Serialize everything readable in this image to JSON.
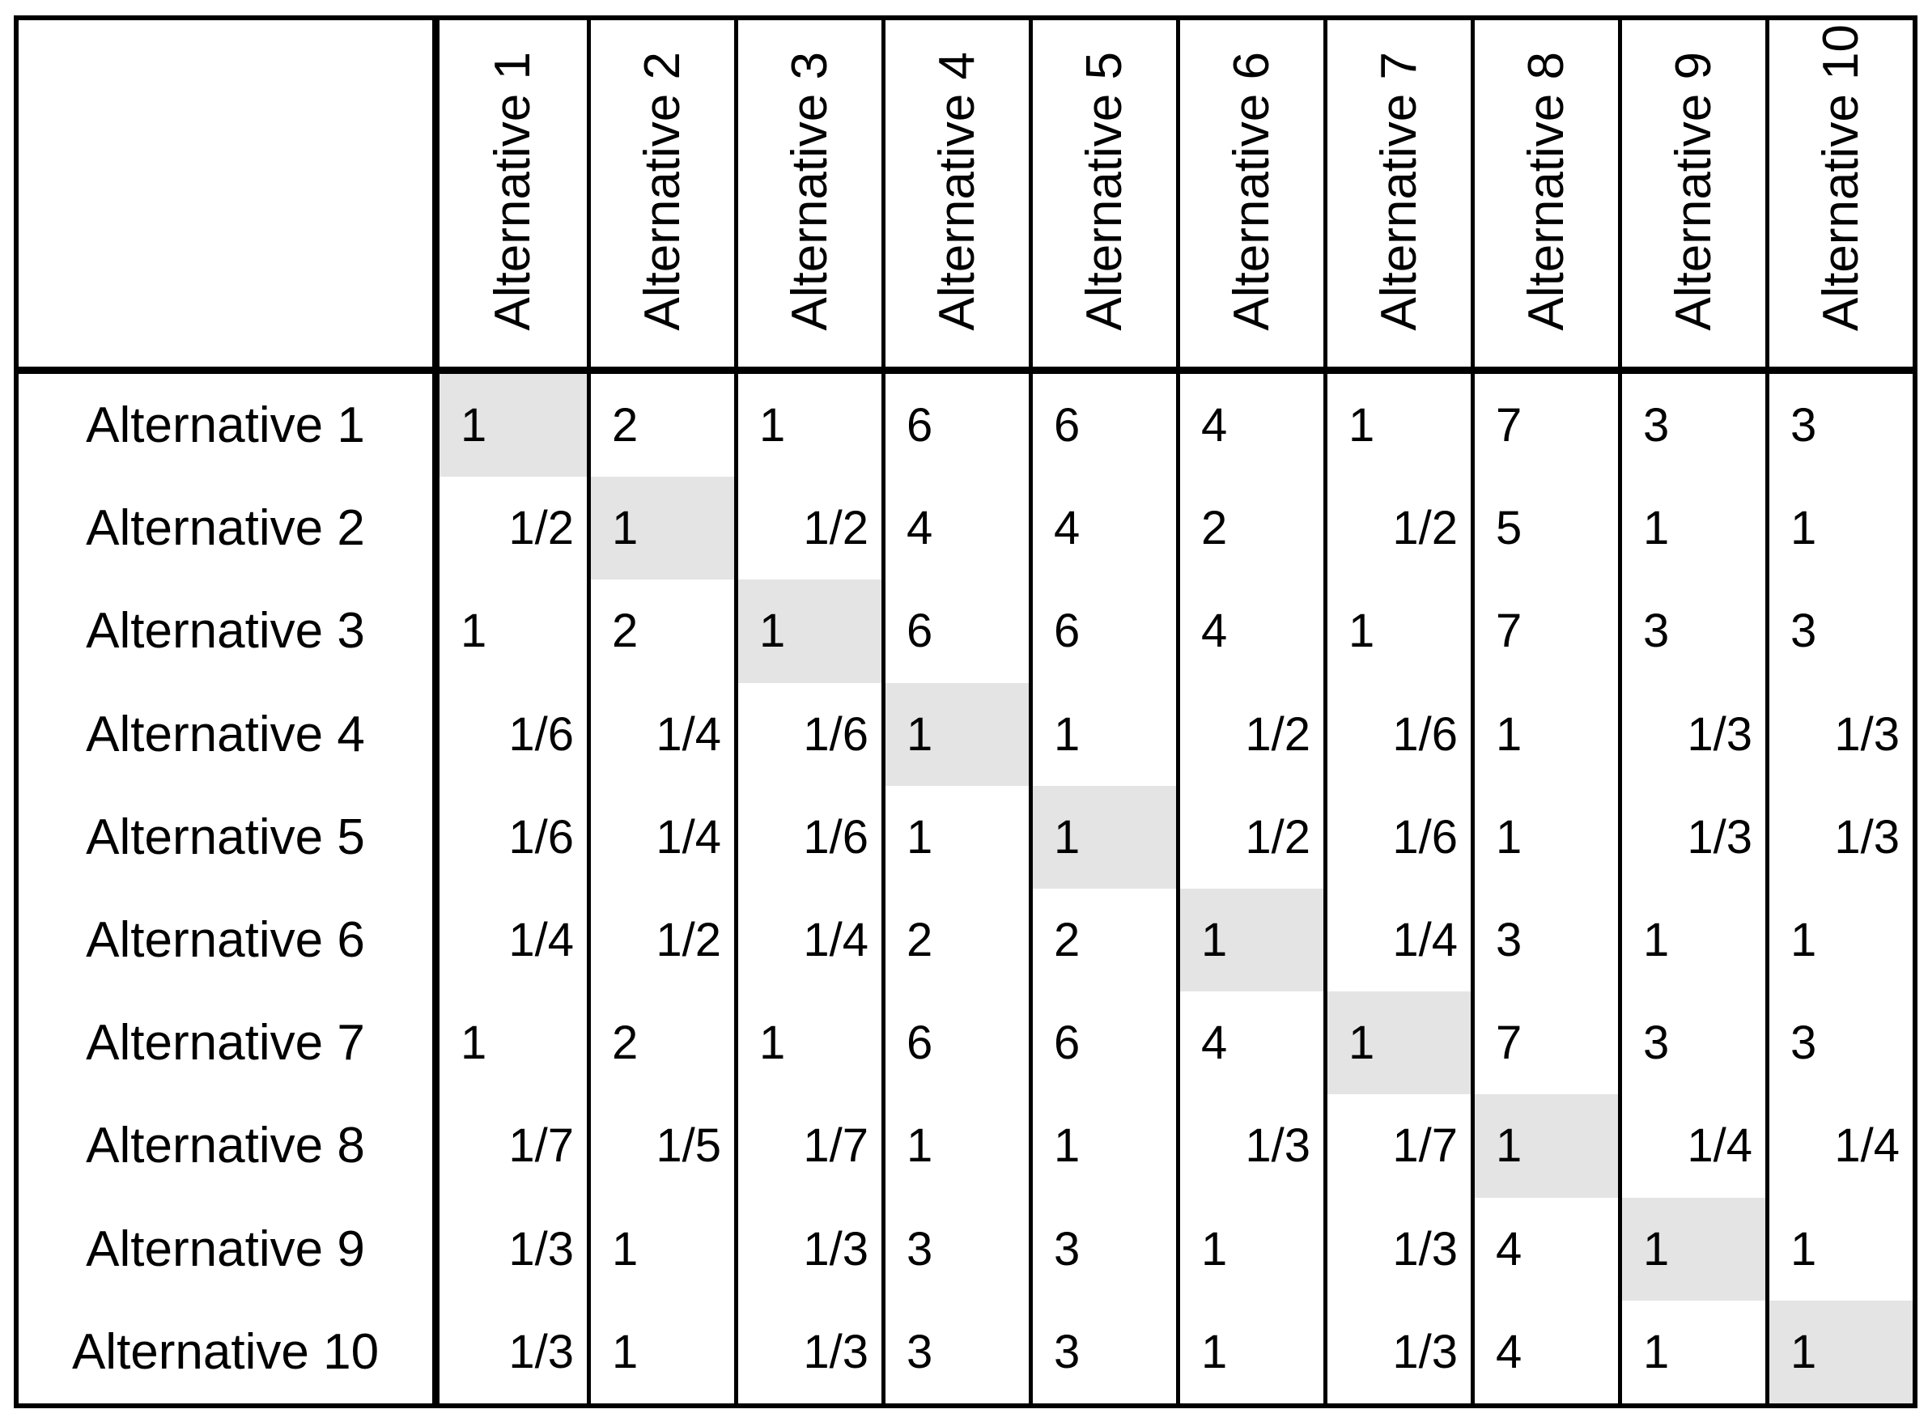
{
  "table": {
    "corner_label": "",
    "column_headers": [
      "Alternative 1",
      "Alternative 2",
      "Alternative 3",
      "Alternative 4",
      "Alternative 5",
      "Alternative 6",
      "Alternative 7",
      "Alternative 8",
      "Alternative 9",
      "Alternative 10"
    ],
    "rows": [
      {
        "label": "Alternative 1",
        "values": [
          "1",
          "2",
          "1",
          "6",
          "6",
          "4",
          "1",
          "7",
          "3",
          "3"
        ]
      },
      {
        "label": "Alternative 2",
        "values": [
          "1/2",
          "1",
          "1/2",
          "4",
          "4",
          "2",
          "1/2",
          "5",
          "1",
          "1"
        ]
      },
      {
        "label": "Alternative 3",
        "values": [
          "1",
          "2",
          "1",
          "6",
          "6",
          "4",
          "1",
          "7",
          "3",
          "3"
        ]
      },
      {
        "label": "Alternative 4",
        "values": [
          "1/6",
          "1/4",
          "1/6",
          "1",
          "1",
          "1/2",
          "1/6",
          "1",
          "1/3",
          "1/3"
        ]
      },
      {
        "label": "Alternative 5",
        "values": [
          "1/6",
          "1/4",
          "1/6",
          "1",
          "1",
          "1/2",
          "1/6",
          "1",
          "1/3",
          "1/3"
        ]
      },
      {
        "label": "Alternative 6",
        "values": [
          "1/4",
          "1/2",
          "1/4",
          "2",
          "2",
          "1",
          "1/4",
          "3",
          "1",
          "1"
        ]
      },
      {
        "label": "Alternative 7",
        "values": [
          "1",
          "2",
          "1",
          "6",
          "6",
          "4",
          "1",
          "7",
          "3",
          "3"
        ]
      },
      {
        "label": "Alternative 8",
        "values": [
          "1/7",
          "1/5",
          "1/7",
          "1",
          "1",
          "1/3",
          "1/7",
          "1",
          "1/4",
          "1/4"
        ]
      },
      {
        "label": "Alternative 9",
        "values": [
          "1/3",
          "1",
          "1/3",
          "3",
          "3",
          "1",
          "1/3",
          "4",
          "1",
          "1"
        ]
      },
      {
        "label": "Alternative 10",
        "values": [
          "1/3",
          "1",
          "1/3",
          "3",
          "3",
          "1",
          "1/3",
          "4",
          "1",
          "1"
        ]
      }
    ],
    "diagonal_highlight_color": "#e4e4e4",
    "border_color": "#000000"
  }
}
